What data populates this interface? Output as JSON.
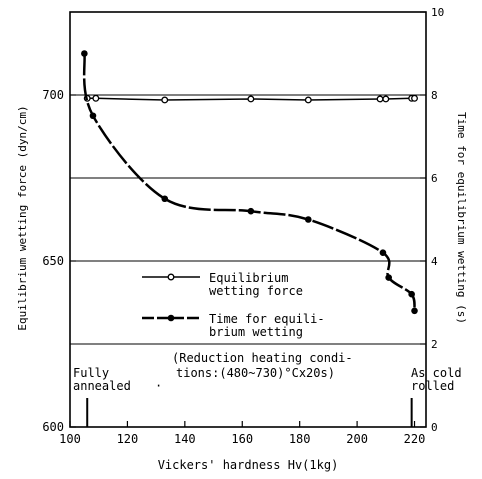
{
  "chart_data": {
    "type": "line",
    "xlabel": "Vickers' hardness Hv(1kg)",
    "ylabel_left": "Equilibrium wetting force (dyn/cm)",
    "ylabel_right": "Time for equilibrium wetting (s)",
    "xlim": [
      100,
      224
    ],
    "ylim_left": [
      600,
      725
    ],
    "ylim_right": [
      0,
      10
    ],
    "x_ticks": [
      100,
      120,
      140,
      160,
      180,
      200,
      220
    ],
    "y_ticks_left": [
      600,
      650,
      700
    ],
    "y_ticks_right": [
      0,
      2,
      4,
      6,
      8,
      10
    ],
    "grid": true,
    "series": [
      {
        "name": "Equilibrium wetting force",
        "axis": "left",
        "marker": "open-circle",
        "x": [
          106,
          109,
          133,
          163,
          183,
          208,
          210,
          219,
          220
        ],
        "y": [
          699,
          699,
          698.5,
          698.8,
          698.5,
          698.8,
          698.8,
          699,
          699
        ]
      },
      {
        "name": "Time for equilibrium wetting",
        "axis": "right",
        "marker": "filled-circle",
        "x": [
          105,
          108,
          133,
          163,
          183,
          209,
          211,
          219,
          220
        ],
        "y": [
          9.0,
          7.5,
          5.5,
          5.2,
          5.0,
          4.2,
          3.6,
          3.2,
          2.8
        ]
      }
    ],
    "legend": {
      "placement": "lower-center",
      "entries": [
        [
          "Equilibrium",
          "wetting force"
        ],
        [
          "Time for equili-",
          "brium wetting"
        ]
      ]
    },
    "annotations": {
      "left_line1": "Fully",
      "left_line2": "annealed",
      "center_line1": "(Reduction heating condi-",
      "center_line2": "tions:(480~730)°Cx20s)",
      "right_line1": "As cold",
      "right_line2": "rolled"
    }
  }
}
